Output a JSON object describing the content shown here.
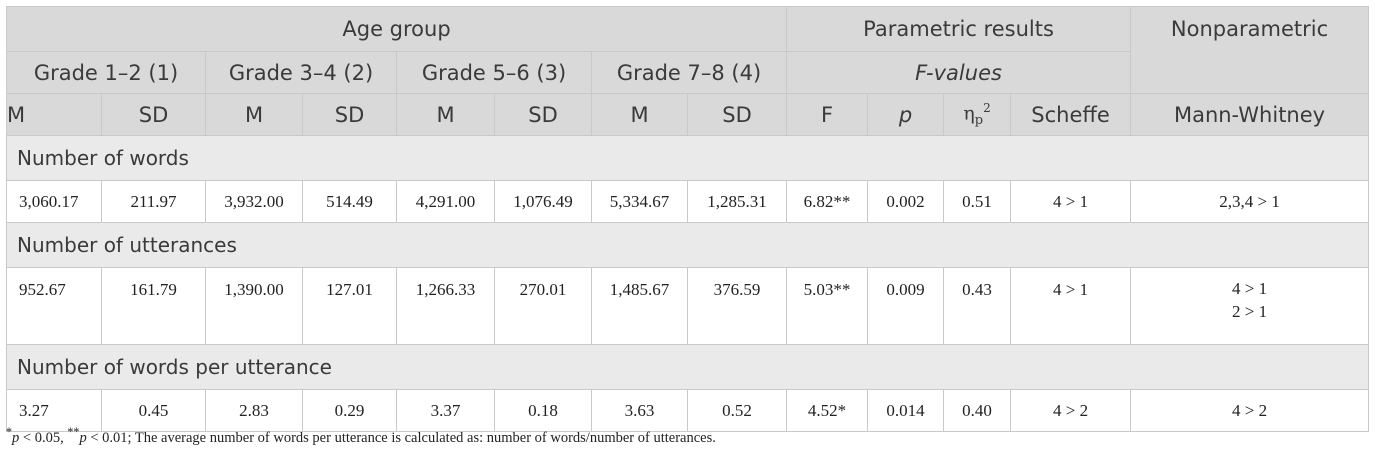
{
  "header": {
    "age_group": "Age group",
    "parametric": "Parametric results",
    "nonparametric": "Nonparametric",
    "grades": [
      "Grade 1–2 (1)",
      "Grade 3–4 (2)",
      "Grade 5–6 (3)",
      "Grade 7–8 (4)"
    ],
    "f_values": "F-values",
    "m": "M",
    "sd": "SD",
    "f": "F",
    "p": "p",
    "eta_symbol": "η",
    "eta_sub": "p",
    "eta_sup": "2",
    "scheffe": "Scheffe",
    "mann_whitney": "Mann-Whitney"
  },
  "sections": [
    {
      "title": "Number of words",
      "values": [
        "3,060.17",
        "211.97",
        "3,932.00",
        "514.49",
        "4,291.00",
        "1,076.49",
        "5,334.67",
        "1,285.31",
        "6.82**",
        "0.002",
        "0.51",
        "4 > 1"
      ],
      "mann_whitney": [
        "2,3,4 > 1"
      ]
    },
    {
      "title": "Number of utterances",
      "values": [
        "952.67",
        "161.79",
        "1,390.00",
        "127.01",
        "1,266.33",
        "270.01",
        "1,485.67",
        "376.59",
        "5.03**",
        "0.009",
        "0.43",
        "4 > 1"
      ],
      "mann_whitney": [
        "4 > 1",
        "2 > 1"
      ]
    },
    {
      "title": "Number of words per utterance",
      "values": [
        "3.27",
        "0.45",
        "2.83",
        "0.29",
        "3.37",
        "0.18",
        "3.63",
        "0.52",
        "4.52*",
        "0.014",
        "0.40",
        "4 > 2"
      ],
      "mann_whitney": [
        "4 > 2"
      ]
    }
  ],
  "footnote": {
    "star1": "*",
    "p1": "p",
    "t1": " < 0.05, ",
    "star2": "**",
    "p2": "p",
    "t2": " < 0.01; The average number of words per utterance is calculated as: number of words/number of utterances."
  }
}
